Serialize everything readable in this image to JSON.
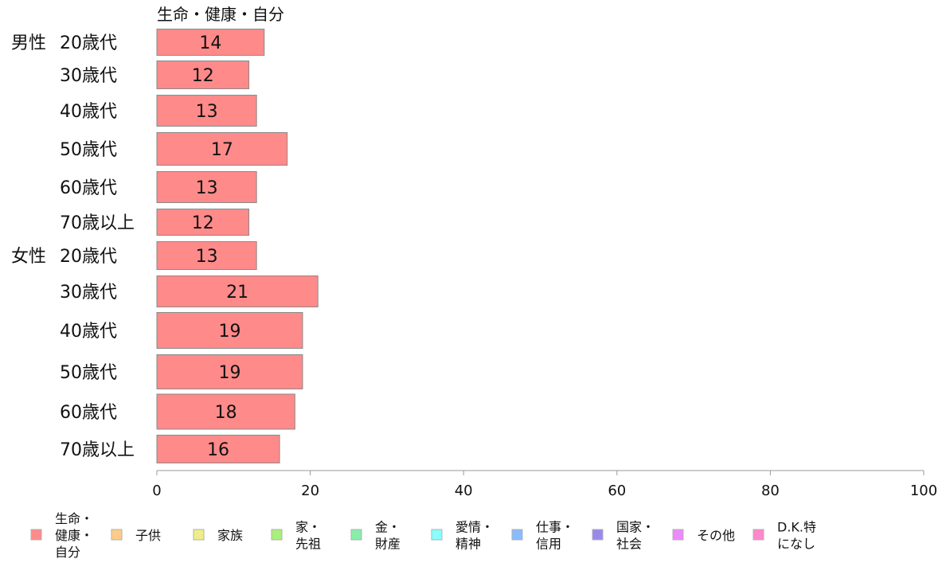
{
  "chart_data": {
    "type": "bar",
    "orientation": "horizontal",
    "series_header": "生命・健康・自分",
    "rows": [
      {
        "group": "男性",
        "age": "20歳代",
        "value": 14
      },
      {
        "group": "",
        "age": "30歳代",
        "value": 12
      },
      {
        "group": "",
        "age": "40歳代",
        "value": 13
      },
      {
        "group": "",
        "age": "50歳代",
        "value": 17
      },
      {
        "group": "",
        "age": "60歳代",
        "value": 13
      },
      {
        "group": "",
        "age": "70歳以上",
        "value": 12
      },
      {
        "group": "女性",
        "age": "20歳代",
        "value": 13
      },
      {
        "group": "",
        "age": "30歳代",
        "value": 21
      },
      {
        "group": "",
        "age": "40歳代",
        "value": 19
      },
      {
        "group": "",
        "age": "50歳代",
        "value": 19
      },
      {
        "group": "",
        "age": "60歳代",
        "value": 18
      },
      {
        "group": "",
        "age": "70歳以上",
        "value": 16
      }
    ],
    "xlim": [
      0,
      100
    ],
    "xticks": [
      0,
      20,
      40,
      60,
      80,
      100
    ],
    "grid": false,
    "legend_placement": "bottom",
    "bar_color": "#ff8a8a",
    "legend": [
      {
        "lines": [
          "生命・",
          "健康・",
          "自分"
        ],
        "color": "#ff8a8a"
      },
      {
        "lines": [
          "子供"
        ],
        "color": "#ffcc88"
      },
      {
        "lines": [
          "家族"
        ],
        "color": "#eeee88"
      },
      {
        "lines": [
          "家・",
          "先祖"
        ],
        "color": "#a8f07a"
      },
      {
        "lines": [
          "金・",
          "財産"
        ],
        "color": "#88eeaa"
      },
      {
        "lines": [
          "愛情・",
          "精神"
        ],
        "color": "#88ffff"
      },
      {
        "lines": [
          "仕事・",
          "信用"
        ],
        "color": "#88bbff"
      },
      {
        "lines": [
          "国家・",
          "社会"
        ],
        "color": "#9988ee"
      },
      {
        "lines": [
          "その他"
        ],
        "color": "#ee88ff"
      },
      {
        "lines": [
          "D.K.特",
          "になし"
        ],
        "color": "#ff88cc"
      }
    ]
  }
}
